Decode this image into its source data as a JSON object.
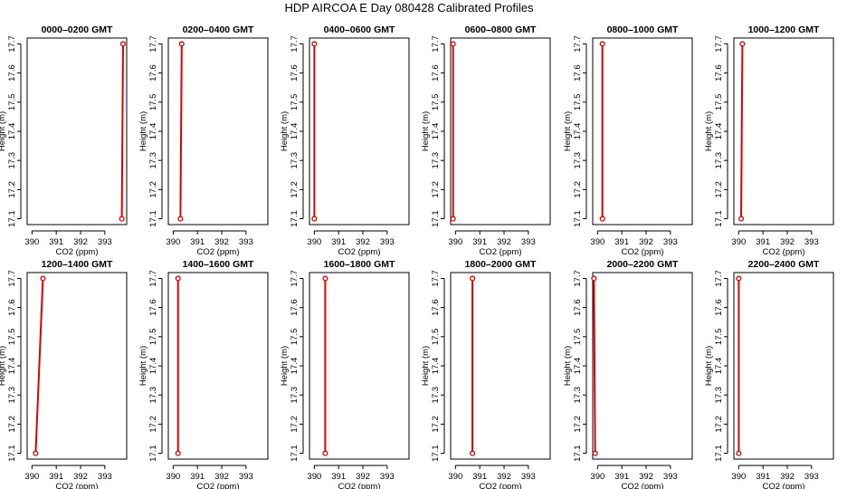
{
  "title": "HDP  AIRCOA E  Day 080428  Calibrated Profiles",
  "colors": {
    "profile": "#e00000",
    "frame": "#000000",
    "background": "#ffffff"
  },
  "chart_data": {
    "type": "line",
    "layout": "2 rows x 6 panels",
    "xlabel": "CO2 (ppm)",
    "ylabel": "Height (m)",
    "xlim": [
      389.8,
      393.9
    ],
    "ylim": [
      17.08,
      17.72
    ],
    "xticks": [
      390,
      391,
      392,
      393
    ],
    "yticks": [
      17.1,
      17.2,
      17.3,
      17.4,
      17.5,
      17.6,
      17.7
    ],
    "panels": [
      {
        "title": "0000–0200 GMT",
        "points": [
          {
            "co2": 393.7,
            "height": 17.1
          },
          {
            "co2": 393.75,
            "height": 17.7
          }
        ]
      },
      {
        "title": "0200–0400 GMT",
        "points": [
          {
            "co2": 390.3,
            "height": 17.1
          },
          {
            "co2": 390.35,
            "height": 17.7
          }
        ]
      },
      {
        "title": "0400–0600 GMT",
        "points": [
          {
            "co2": 390.0,
            "height": 17.1
          },
          {
            "co2": 390.0,
            "height": 17.7
          }
        ]
      },
      {
        "title": "0600–0800 GMT",
        "points": [
          {
            "co2": 389.9,
            "height": 17.1
          },
          {
            "co2": 389.9,
            "height": 17.7
          }
        ]
      },
      {
        "title": "0800–1000 GMT",
        "points": [
          {
            "co2": 390.2,
            "height": 17.1
          },
          {
            "co2": 390.2,
            "height": 17.7
          }
        ]
      },
      {
        "title": "1000–1200 GMT",
        "points": [
          {
            "co2": 390.1,
            "height": 17.1
          },
          {
            "co2": 390.15,
            "height": 17.7
          }
        ]
      },
      {
        "title": "1200–1400 GMT",
        "points": [
          {
            "co2": 390.15,
            "height": 17.1
          },
          {
            "co2": 390.45,
            "height": 17.7
          }
        ]
      },
      {
        "title": "1400–1600 GMT",
        "points": [
          {
            "co2": 390.2,
            "height": 17.1
          },
          {
            "co2": 390.2,
            "height": 17.7
          }
        ]
      },
      {
        "title": "1600–1800 GMT",
        "points": [
          {
            "co2": 390.45,
            "height": 17.1
          },
          {
            "co2": 390.45,
            "height": 17.7
          }
        ]
      },
      {
        "title": "1800–2000 GMT",
        "points": [
          {
            "co2": 390.7,
            "height": 17.1
          },
          {
            "co2": 390.7,
            "height": 17.7
          }
        ]
      },
      {
        "title": "2000–2200 GMT",
        "points": [
          {
            "co2": 389.9,
            "height": 17.1
          },
          {
            "co2": 389.85,
            "height": 17.7
          }
        ]
      },
      {
        "title": "2200–2400 GMT",
        "points": [
          {
            "co2": 390.0,
            "height": 17.1
          },
          {
            "co2": 390.0,
            "height": 17.7
          }
        ]
      }
    ]
  }
}
